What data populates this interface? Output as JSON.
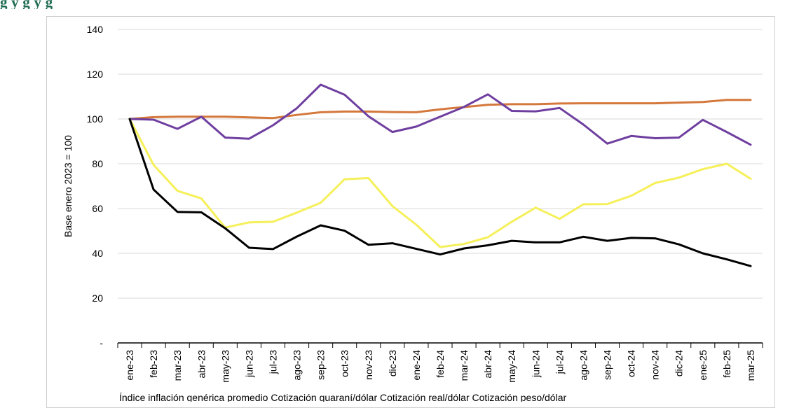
{
  "page": {
    "title_strip": "g                                y                  g                                                              y                                                                 g"
  },
  "chart_data": {
    "type": "line",
    "title": "",
    "ylabel": "Base enero 2023 = 100",
    "xlabel": "",
    "ylim": [
      0,
      140
    ],
    "yticks": [
      {
        "value": 0,
        "label": "-"
      },
      {
        "value": 20,
        "label": "20"
      },
      {
        "value": 40,
        "label": "40"
      },
      {
        "value": 60,
        "label": "60"
      },
      {
        "value": 80,
        "label": "80"
      },
      {
        "value": 100,
        "label": "100"
      },
      {
        "value": 120,
        "label": "120"
      },
      {
        "value": 140,
        "label": "140"
      }
    ],
    "grid": true,
    "categories": [
      "ene-23",
      "feb-23",
      "mar-23",
      "abr-23",
      "may-23",
      "jun-23",
      "jul-23",
      "ago-23",
      "sep-23",
      "oct-23",
      "nov-23",
      "dic-23",
      "ene-24",
      "feb-24",
      "mar-24",
      "abr-24",
      "may-24",
      "jun-24",
      "jul-24",
      "ago-24",
      "sep-24",
      "oct-24",
      "nov-24",
      "dic-24",
      "ene-25",
      "feb-25",
      "mar-25"
    ],
    "series": [
      {
        "color": "#d4783c",
        "values": [
          100,
          100.8,
          101,
          101,
          101,
          100.7,
          100.4,
          101.8,
          103,
          103.3,
          103.3,
          103.1,
          103,
          104.3,
          105.3,
          106.3,
          106.6,
          106.6,
          106.9,
          107,
          107,
          107,
          107,
          107.3,
          107.6,
          108.5,
          108.5
        ]
      },
      {
        "color": "#6f3fa0",
        "values": [
          100,
          99.7,
          95.6,
          101,
          91.7,
          91.2,
          97.2,
          104.8,
          115.3,
          110.8,
          101.2,
          94.2,
          96.6,
          101,
          105.4,
          111,
          103.6,
          103.4,
          104.9,
          97.5,
          89,
          92.4,
          91.4,
          91.7,
          99.6,
          94.2,
          88.5
        ]
      },
      {
        "color": "#f5f05a",
        "values": [
          100,
          79.5,
          67.9,
          64.5,
          51.5,
          53.8,
          54.1,
          58.2,
          62.6,
          73.1,
          73.6,
          61.1,
          52.8,
          42.8,
          44.2,
          47.2,
          54.1,
          60.4,
          55.4,
          61.9,
          62,
          65.7,
          71.4,
          73.8,
          77.6,
          80,
          73.3
        ]
      },
      {
        "color": "#000000",
        "values": [
          100,
          68.5,
          58.5,
          58.3,
          51.2,
          42.5,
          41.9,
          47.5,
          52.5,
          50.1,
          43.8,
          44.5,
          42,
          39.5,
          42.2,
          43.6,
          45.6,
          44.9,
          44.9,
          47.4,
          45.6,
          46.9,
          46.7,
          44,
          40,
          37.3,
          34.3
        ]
      }
    ],
    "legend_placement": "bottom",
    "legend_strip": "Índice inflación genérica promedio        Cotización guaraní/dólar        Cotización real/dólar        Cotización peso/dólar"
  }
}
